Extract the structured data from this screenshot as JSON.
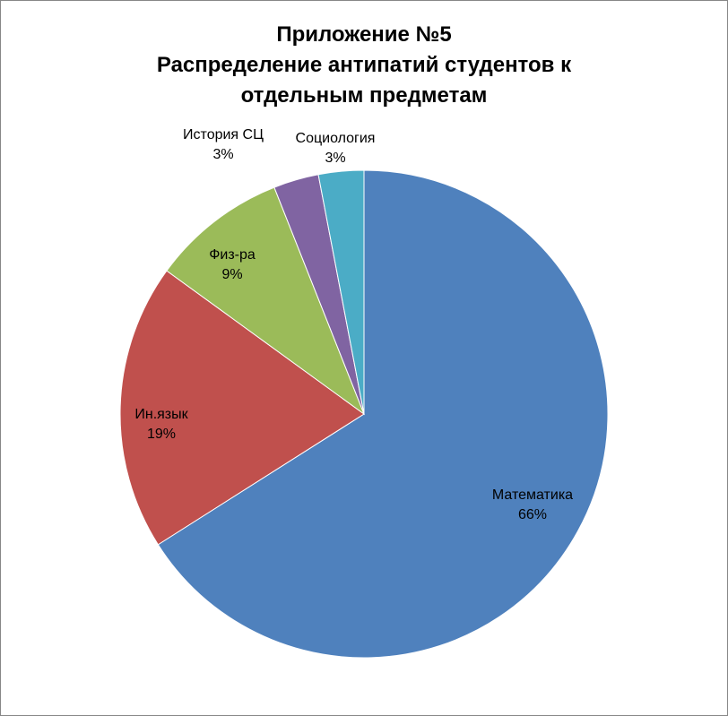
{
  "chart_data": {
    "type": "pie",
    "title_lines": [
      "Приложение №5",
      "Распределение антипатий студентов к",
      "отдельным предметам"
    ],
    "categories": [
      "Математика",
      "Ин.язык",
      "Физ-ра",
      "История СЦ",
      "Социология"
    ],
    "values": [
      66,
      19,
      9,
      3,
      3
    ],
    "value_labels": [
      "66%",
      "19%",
      "9%",
      "3%",
      "3%"
    ],
    "colors": [
      "#4F81BD",
      "#C0504D",
      "#9BBB59",
      "#8064A2",
      "#4BACC6"
    ],
    "legend": "none",
    "start": "12 o'clock, clockwise"
  }
}
